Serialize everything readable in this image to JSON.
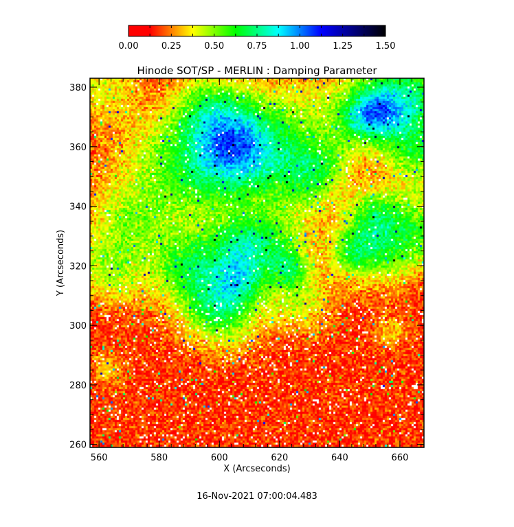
{
  "chart_data": {
    "type": "heatmap",
    "title": "Hinode SOT/SP - MERLIN : Damping Parameter",
    "xlabel": "X (Arcseconds)",
    "ylabel": "Y (Arcseconds)",
    "xlim": [
      557,
      668
    ],
    "ylim": [
      259,
      383
    ],
    "xticks": [
      "560",
      "580",
      "600",
      "620",
      "640",
      "660"
    ],
    "yticks": [
      "260",
      "280",
      "300",
      "320",
      "340",
      "360",
      "380"
    ],
    "colorbar": {
      "range": [
        0.0,
        1.5
      ],
      "ticks": [
        "0.00",
        "0.25",
        "0.50",
        "0.75",
        "1.00",
        "1.25",
        "1.50"
      ],
      "placement": "top",
      "colormap": [
        {
          "value": 0.0,
          "color": "#ff0000"
        },
        {
          "value": 0.125,
          "color": "#ff0000"
        },
        {
          "value": 0.375,
          "color": "#ffff00"
        },
        {
          "value": 0.625,
          "color": "#00ff00"
        },
        {
          "value": 0.875,
          "color": "#00ffff"
        },
        {
          "value": 1.125,
          "color": "#0000ff"
        },
        {
          "value": 1.5,
          "color": "#000000"
        }
      ]
    },
    "values_description_note": "",
    "typical_range": [
      0.0,
      0.45
    ],
    "missing_color": "#ffffff"
  },
  "timestamp": "16-Nov-2021 07:00:04.483"
}
